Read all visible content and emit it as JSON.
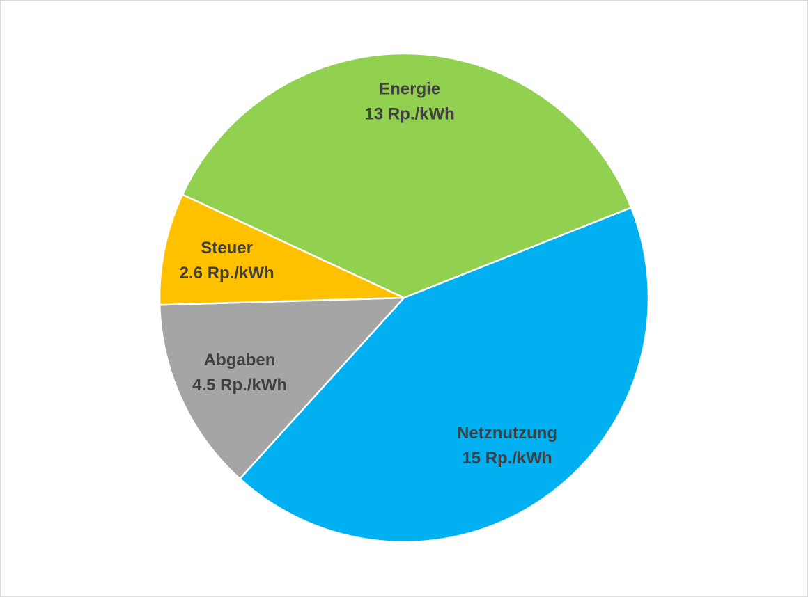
{
  "chart_data": {
    "type": "pie",
    "categories": [
      "Energie",
      "Netznutzung",
      "Abgaben",
      "Steuer"
    ],
    "values": [
      13,
      15,
      4.5,
      2.6
    ],
    "value_labels": [
      "13 Rp./kWh",
      "15 Rp./kWh",
      "4.5 Rp./kWh",
      "2.6 Rp./kWh"
    ],
    "colors": [
      "#92d050",
      "#00b0f0",
      "#a5a5a5",
      "#ffc000"
    ]
  }
}
